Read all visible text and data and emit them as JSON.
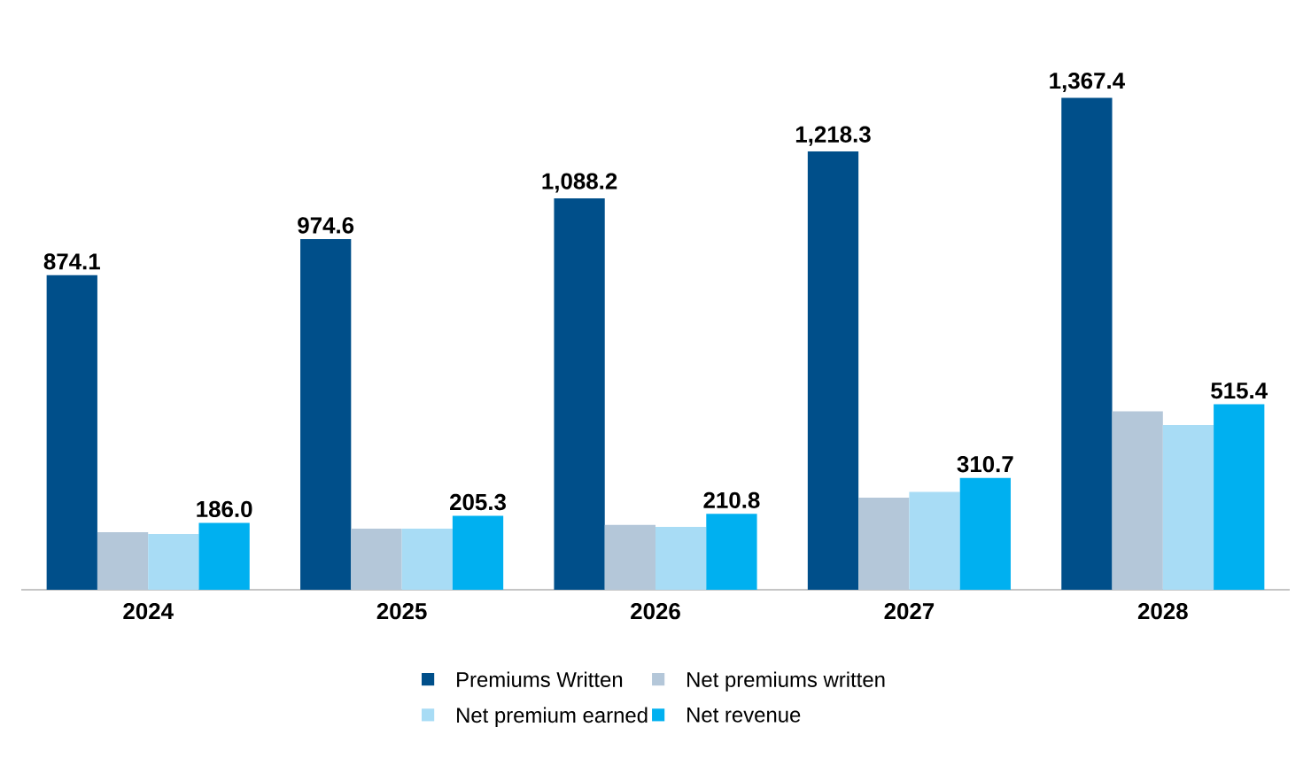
{
  "chart_data": {
    "type": "bar",
    "categories": [
      "2024",
      "2025",
      "2026",
      "2027",
      "2028"
    ],
    "series": [
      {
        "name": "Premiums Written",
        "color": "#004f8a",
        "values": [
          874.1,
          974.6,
          1088.2,
          1218.3,
          1367.4
        ],
        "value_labels": [
          "874.1",
          "974.6",
          "1,088.2",
          "1,218.3",
          "1,367.4"
        ]
      },
      {
        "name": "Net premiums written",
        "color": "#b4c7d9",
        "values": [
          160,
          170,
          180,
          256,
          496
        ]
      },
      {
        "name": "Net premium earned",
        "color": "#a8dcf5",
        "values": [
          155,
          170,
          175,
          272,
          458
        ]
      },
      {
        "name": "Net revenue",
        "color": "#00b0f0",
        "values": [
          186.0,
          205.3,
          210.8,
          310.7,
          515.4
        ],
        "value_labels": [
          "186.0",
          "205.3",
          "210.8",
          "310.7",
          "515.4"
        ]
      }
    ],
    "legend": "bottom"
  }
}
